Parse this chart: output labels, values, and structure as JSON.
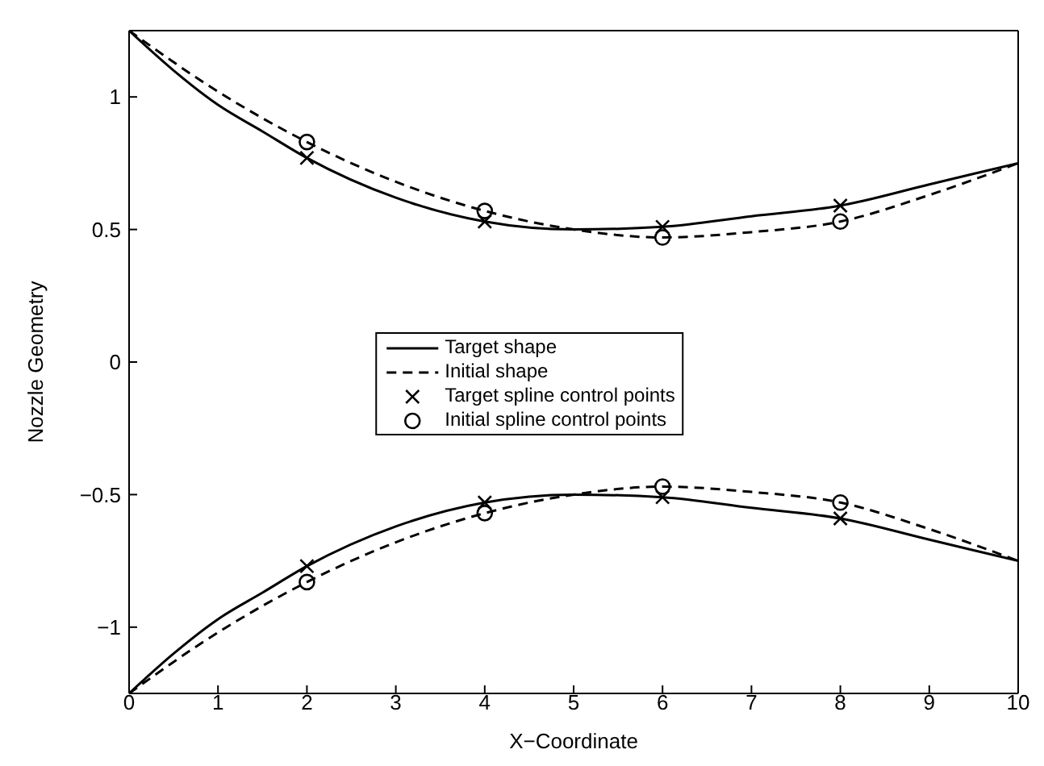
{
  "chart_data": {
    "type": "line",
    "xlabel": "X−Coordinate",
    "ylabel": "Nozzle Geometry",
    "xlim": [
      0,
      10
    ],
    "ylim": [
      -1.25,
      1.25
    ],
    "xticks": [
      0,
      1,
      2,
      3,
      4,
      5,
      6,
      7,
      8,
      9,
      10
    ],
    "yticks": [
      -1,
      -0.5,
      0,
      0.5,
      1
    ],
    "grid": false,
    "legend": "center",
    "series": [
      {
        "name": "Target shape",
        "line_style": "solid",
        "color": "#000000",
        "x": [
          0,
          0.5,
          1,
          1.5,
          2,
          3,
          4,
          5,
          6,
          7,
          8,
          9,
          10
        ],
        "values": [
          1.25,
          1.1,
          0.97,
          0.87,
          0.77,
          0.62,
          0.53,
          0.5,
          0.51,
          0.55,
          0.59,
          0.67,
          0.75
        ]
      },
      {
        "name": "Initial shape",
        "line_style": "dashed",
        "color": "#000000",
        "x": [
          0,
          1,
          2,
          3,
          4,
          5,
          6,
          7,
          8,
          9,
          10
        ],
        "values": [
          1.25,
          1.02,
          0.83,
          0.68,
          0.57,
          0.5,
          0.47,
          0.49,
          0.53,
          0.63,
          0.75
        ]
      },
      {
        "name": "Target spline control points",
        "type": "scatter",
        "marker": "cross",
        "color": "#000000",
        "x": [
          2,
          4,
          6,
          8
        ],
        "values": [
          0.77,
          0.53,
          0.51,
          0.59
        ]
      },
      {
        "name": "Initial spline control points",
        "type": "scatter",
        "marker": "circle",
        "color": "#000000",
        "x": [
          2,
          4,
          6,
          8
        ],
        "values": [
          0.83,
          0.57,
          0.47,
          0.53
        ]
      },
      {
        "type": "line",
        "line_style": "solid",
        "color": "#000000",
        "x": [
          0,
          0.5,
          1,
          1.5,
          2,
          3,
          4,
          5,
          6,
          7,
          8,
          9,
          10
        ],
        "values": [
          -1.25,
          -1.1,
          -0.97,
          -0.87,
          -0.77,
          -0.62,
          -0.53,
          -0.5,
          -0.51,
          -0.55,
          -0.59,
          -0.67,
          -0.75
        ]
      },
      {
        "type": "line",
        "line_style": "dashed",
        "color": "#000000",
        "x": [
          0,
          1,
          2,
          3,
          4,
          5,
          6,
          7,
          8,
          9,
          10
        ],
        "values": [
          -1.25,
          -1.02,
          -0.83,
          -0.68,
          -0.57,
          -0.5,
          -0.47,
          -0.49,
          -0.53,
          -0.63,
          -0.75
        ]
      },
      {
        "type": "scatter",
        "marker": "cross",
        "color": "#000000",
        "x": [
          2,
          4,
          6,
          8
        ],
        "values": [
          -0.77,
          -0.53,
          -0.51,
          -0.59
        ]
      },
      {
        "type": "scatter",
        "marker": "circle",
        "color": "#000000",
        "x": [
          2,
          4,
          6,
          8
        ],
        "values": [
          -0.83,
          -0.57,
          -0.47,
          -0.53
        ]
      }
    ]
  }
}
